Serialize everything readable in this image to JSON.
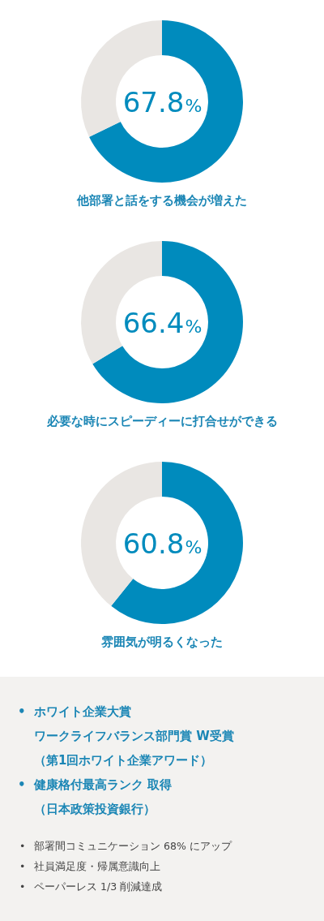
{
  "chart_data": [
    {
      "type": "donut",
      "title": "他部署と話をする機会が増えた",
      "categories": [
        null,
        null
      ],
      "values": [
        67.8,
        32.2
      ],
      "colors": [
        "#008bbd",
        "#e9e6e3"
      ],
      "value_labels": [
        "67.8%",
        null
      ],
      "legend": false
    },
    {
      "type": "donut",
      "title": "必要な時にスピーディーに打合せができる",
      "categories": [
        null,
        null
      ],
      "values": [
        66.4,
        33.6
      ],
      "colors": [
        "#008bbd",
        "#e9e6e3"
      ],
      "value_labels": [
        "66.4%",
        null
      ],
      "legend": false
    },
    {
      "type": "donut",
      "title": "雰囲気が明るくなった",
      "categories": [
        null,
        null
      ],
      "values": [
        60.8,
        39.2
      ],
      "colors": [
        "#008bbd",
        "#e9e6e3"
      ],
      "value_labels": [
        "60.8%",
        null
      ],
      "legend": false
    },
    {
      "type": "other",
      "annotations": [
        "• ホワイト企業大賞",
        "ワークライフバランス部門賞 W受賞",
        "（第1回ホワイト企業アワード）",
        "• 健康格付最高ランク 取得",
        "（日本政策投資銀行）",
        "• 部署間コミュニケーション 68% にアップ",
        "• 社員満足度・帰属意識向上",
        "• ペーパーレス 1/3 削減達成"
      ]
    }
  ]
}
